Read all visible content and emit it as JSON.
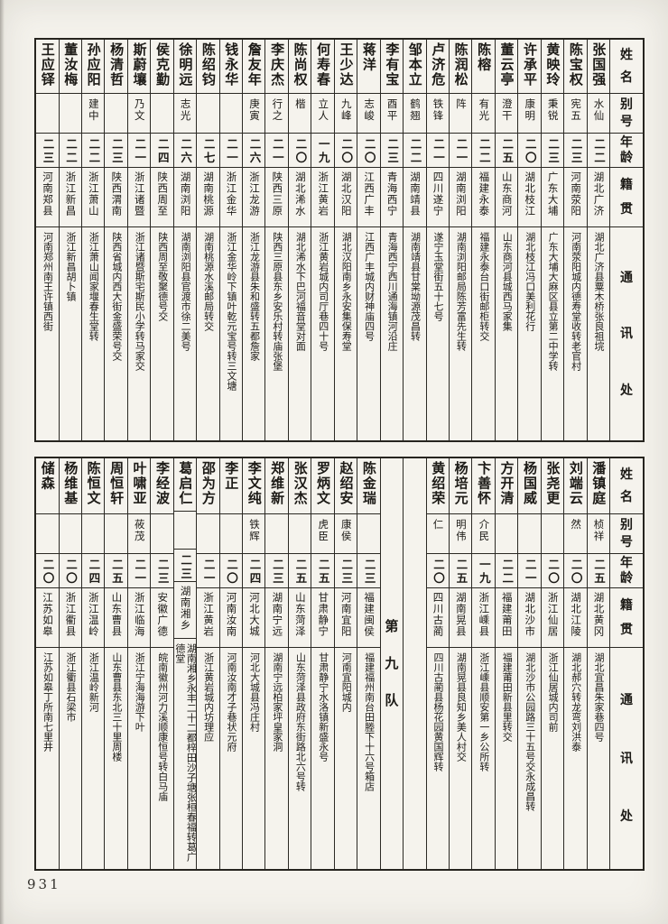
{
  "page": {
    "number": "931"
  },
  "headers": {
    "name": "姓名",
    "alias": "别号",
    "age": "年龄",
    "native": "籍贯",
    "address": "通讯处"
  },
  "tables": [
    {
      "id": "table-top",
      "columns": [
        {
          "name": "张国强",
          "alias": "水仙",
          "age": "二二",
          "native": "湖北广济",
          "address": "湖北广济县粟木桥张良祖垸"
        },
        {
          "name": "陈宝权",
          "alias": "宪五",
          "age": "二三",
          "native": "河南荥阳",
          "address": "河南荥阳城内德寿堂收转老官村"
        },
        {
          "name": "黄映玲",
          "alias": "秉锐",
          "age": "二三",
          "native": "广东大埔",
          "address": "广东大埔大麻区县立第二中学转"
        },
        {
          "name": "许承平",
          "alias": "康明",
          "age": "二〇",
          "native": "湖北枝江",
          "address": "湖北枝江冯口美利花行"
        },
        {
          "name": "董云亭",
          "alias": "澄干",
          "age": "二五",
          "native": "山东商河",
          "address": "山东商河县城西马家集"
        },
        {
          "name": "陈榕",
          "alias": "有光",
          "age": "二二",
          "native": "福建永泰",
          "address": "福建永泰台口街邮柜转交"
        },
        {
          "name": "陈润松",
          "alias": "阵",
          "age": "二一",
          "native": "湖南浏阳",
          "address": "湖南浏阳邮局陈芳富先生转"
        },
        {
          "name": "卢济危",
          "alias": "铁锋",
          "age": "二一",
          "native": "四川遂宁",
          "address": "遂宁玉堂街五十七号"
        },
        {
          "name": "邹本立",
          "alias": "鹤翘",
          "age": "二二",
          "native": "湖南靖县",
          "address": "湖南靖县甘棠坳源茂昌转"
        },
        {
          "name": "李有宝",
          "alias": "酉平",
          "age": "二三",
          "native": "青海西宁",
          "address": "青海西宁西川通海镇河沿庄"
        },
        {
          "name": "蒋洋",
          "alias": "志峻",
          "age": "二〇",
          "native": "江西广丰",
          "address": "江西广丰城内财神庙四号"
        },
        {
          "name": "王少达",
          "alias": "九峰",
          "age": "二〇",
          "native": "湖北汉阳",
          "address": "湖北汉阳南乡永安集保寿堂"
        },
        {
          "name": "何寿春",
          "alias": "立人",
          "age": "一九",
          "native": "浙江黄岩",
          "address": "浙江黄岩城内司厅巷四十号"
        },
        {
          "name": "陈尚权",
          "alias": "楷",
          "age": "二〇",
          "native": "湖北浠水",
          "address": "湖北浠水下巴河福音堂对面"
        },
        {
          "name": "李庆杰",
          "alias": "行之",
          "age": "二一",
          "native": "陕西三原",
          "address": "陕西三原县东乡安乐村转庙张堡"
        },
        {
          "name": "詹友年",
          "alias": "庚寅",
          "age": "二六",
          "native": "浙江龙游",
          "address": "浙江龙游县朱和盛转五都詹家"
        },
        {
          "name": "钱永华",
          "alias": "",
          "age": "二一",
          "native": "浙江金华",
          "address": "浙江金华岭下镇叶乾元宝号转三文塘"
        },
        {
          "name": "陈绍钧",
          "alias": "",
          "age": "二七",
          "native": "湖南桃源",
          "address": "湖南桃源水溪邮局转交"
        },
        {
          "name": "徐明远",
          "alias": "志光",
          "age": "二六",
          "native": "湖南浏阳",
          "address": "湖南浏阳县官渡市徐二美号"
        },
        {
          "name": "侯克勤",
          "alias": "",
          "age": "二四",
          "native": "陕西周至",
          "address": "陕西周至敬聚德号交"
        },
        {
          "name": "斯蔚壤",
          "alias": "乃文",
          "age": "二一",
          "native": "浙江诸暨",
          "address": "浙江诸暨斯宅斯民小学转马家交"
        },
        {
          "name": "杨清哲",
          "alias": "",
          "age": "二三",
          "native": "陕西渭南",
          "address": "陕西省城内西大街金盛荣号交"
        },
        {
          "name": "孙应阳",
          "alias": "建中",
          "age": "二二",
          "native": "浙江萧山",
          "address": "浙江萧山闻家堰春生堂转"
        },
        {
          "name": "董汝梅",
          "alias": "",
          "age": "二二",
          "native": "浙江新昌",
          "address": "浙江新昌胡卜镇"
        },
        {
          "name": "王应铎",
          "alias": "",
          "age": "二三",
          "native": "河南郑县",
          "address": "河南郑州南王许镇西街"
        }
      ]
    },
    {
      "id": "table-bottom",
      "columns": [
        {
          "name": "潘镇庭",
          "alias": "桢祥",
          "age": "二五",
          "native": "湖北黄冈",
          "address": "湖北宜昌朱家巷四号"
        },
        {
          "name": "刘端云",
          "alias": "然",
          "age": "二〇",
          "native": "湖北江陵",
          "address": "湖北郝穴转龙弯刘洪泰"
        },
        {
          "name": "张尧更",
          "alias": "",
          "age": "二〇",
          "native": "浙江仙居",
          "address": "浙江仙居城内司前"
        },
        {
          "name": "杨国威",
          "alias": "",
          "age": "二一",
          "native": "湖北沙市",
          "address": "湖北沙市公园路三十五号交永成昌转"
        },
        {
          "name": "方开清",
          "alias": "",
          "age": "二二",
          "native": "福建莆田",
          "address": "福建莆田新县里转交"
        },
        {
          "name": "卞善怀",
          "alias": "介民",
          "age": "一九",
          "native": "浙江嵊县",
          "address": "浙江嵊县顺安第一乡公所转"
        },
        {
          "name": "杨培元",
          "alias": "明伟",
          "age": "二五",
          "native": "湖南晃县",
          "address": "湖南晃县良知乡美人村交"
        },
        {
          "name": "黄绍荣",
          "alias": "仁",
          "age": "二〇",
          "native": "四川古蔺",
          "address": "四川古蔺县杨花园黄国辉转"
        },
        {
          "blank": true
        },
        {
          "section": "第九队"
        },
        {
          "name": "陈金瑞",
          "alias": "",
          "age": "二三",
          "native": "福建闽侯",
          "address": "福建福州南台田塍下十六号箱店"
        },
        {
          "name": "赵绍安",
          "alias": "康侯",
          "age": "二三",
          "native": "河南宜阳",
          "address": "河南宜阳城内"
        },
        {
          "name": "罗炳文",
          "alias": "虎臣",
          "age": "二五",
          "native": "甘肃静宁",
          "address": "甘肃静宁水洛镇新盛永号"
        },
        {
          "name": "张汉杰",
          "alias": "",
          "age": "二五",
          "native": "山东菏泽",
          "address": "山东菏泽县政府东街路北六号转"
        },
        {
          "name": "郑维新",
          "alias": "",
          "age": "二三",
          "native": "湖南宁远",
          "address": "湖南宁远柏家坪皇家洞"
        },
        {
          "name": "李文纯",
          "alias": "铁辉",
          "age": "二四",
          "native": "河北大城",
          "address": "河北大城县冯庄村"
        },
        {
          "name": "李正",
          "alias": "",
          "age": "二〇",
          "native": "河南汝南",
          "address": "河南汝南才子巷状元府"
        },
        {
          "name": "邵为方",
          "alias": "",
          "age": "二一",
          "native": "浙江黄岩",
          "address": "浙江黄岩城内坊理应"
        },
        {
          "name": "葛启仁",
          "alias": "",
          "age": "二三",
          "native": "湖南湘乡",
          "address": "湖南湘乡永丰二十二都梓田沙子塘张桓春福转葛广德堂"
        },
        {
          "name": "李经波",
          "alias": "",
          "age": "二三",
          "native": "安徽广德",
          "address": "皖南徽州河力溪顺康恒号转白马庙"
        },
        {
          "name": "叶啸亚",
          "alias": "莜茂",
          "age": "二一",
          "native": "浙江临海",
          "address": "浙江宁海海游下叶"
        },
        {
          "name": "周恒轩",
          "alias": "",
          "age": "二五",
          "native": "山东曹县",
          "address": "山东曹县东北三十里周楼"
        },
        {
          "name": "陈恒文",
          "alias": "",
          "age": "二四",
          "native": "浙江温岭",
          "address": "浙江温岭新河"
        },
        {
          "name": "杨维基",
          "alias": "",
          "age": "二〇",
          "native": "浙江衢县",
          "address": "浙江衢县石梁市"
        },
        {
          "name": "储森",
          "alias": "",
          "age": "二〇",
          "native": "江苏如皋",
          "address": "江苏如皋丁所南七里井"
        }
      ]
    }
  ]
}
